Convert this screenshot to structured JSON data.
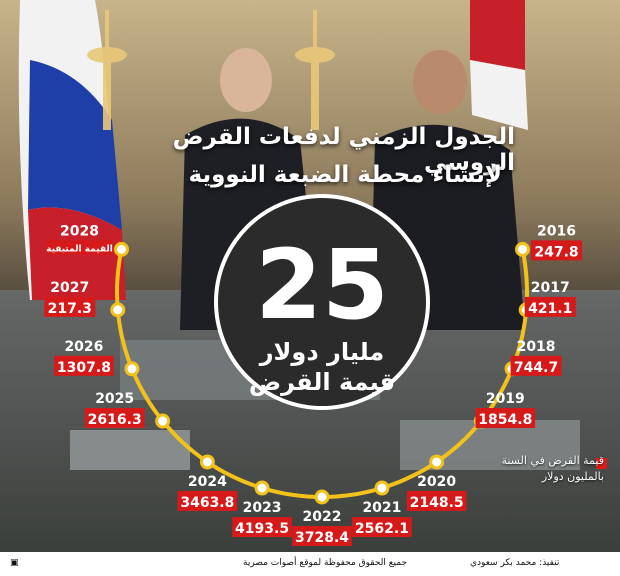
{
  "title_line1": "الجدول الزمني لدفعات القرض الروسي",
  "title_line2": "لإنشاء محطة الضبعة النووية",
  "center": {
    "number": "25",
    "line1": "مليار دولار",
    "line2": "قيمة القرض"
  },
  "legend_text": "قيمة القرض في السنة بالمليون دولار",
  "footer": {
    "design": "تنفيذ: محمد بكر سعودي",
    "rights": "جميع الحقوق محفوظة لموقع أصوات مصرية"
  },
  "colors": {
    "arc": "#f2c21b",
    "label_bg": "#d61a1a",
    "label_text": "#ffffff",
    "year_text": "#ffffff"
  },
  "chart_data": {
    "type": "line",
    "title": "الجدول الزمني لدفعات القرض الروسي لإنشاء محطة الضبعة النووية",
    "xlabel": "",
    "ylabel": "",
    "series": [
      {
        "name": "قيمة القرض في السنة بالمليون دولار",
        "points": [
          {
            "year": "2016",
            "label": "247.8",
            "value": 247.8
          },
          {
            "year": "2017",
            "label": "421.1",
            "value": 421.1
          },
          {
            "year": "2018",
            "label": "744.7",
            "value": 744.7
          },
          {
            "year": "2019",
            "label": "1854.8",
            "value": 1854.8
          },
          {
            "year": "2020",
            "label": "2148.5",
            "value": 2148.5
          },
          {
            "year": "2021",
            "label": "2562.1",
            "value": 2562.1
          },
          {
            "year": "2022",
            "label": "3728.4",
            "value": 3728.4
          },
          {
            "year": "2023",
            "label": "4193.5",
            "value": 4193.5
          },
          {
            "year": "2024",
            "label": "3463.8",
            "value": 3463.8
          },
          {
            "year": "2025",
            "label": "2616.3",
            "value": 2616.3
          },
          {
            "year": "2026",
            "label": "1307.8",
            "value": 1307.8
          },
          {
            "year": "2027",
            "label": "217.3",
            "value": 217.3
          },
          {
            "year": "2028",
            "label": "القيمة المتبقية",
            "value": null
          }
        ]
      }
    ]
  }
}
